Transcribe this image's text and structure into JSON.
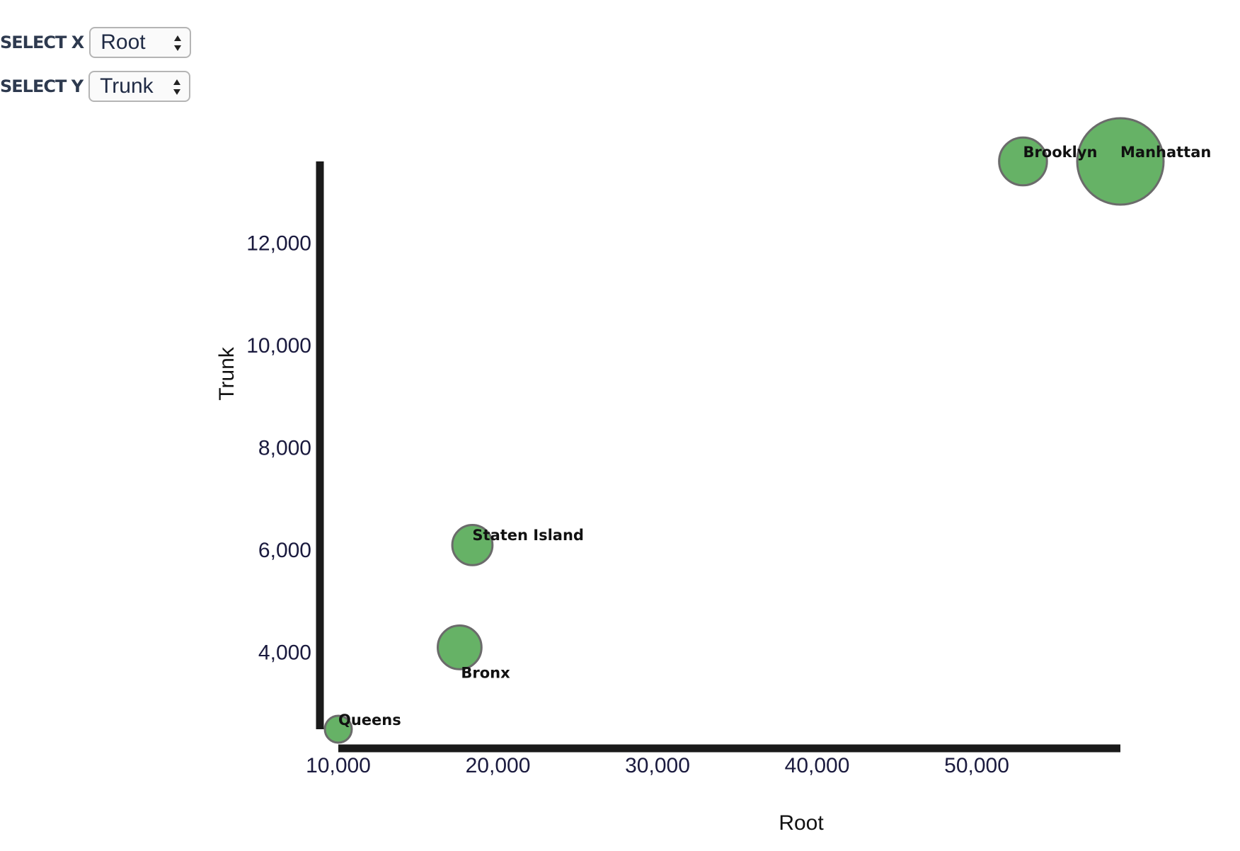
{
  "controls": {
    "x": {
      "label": "SELECT X",
      "value": "Root"
    },
    "y": {
      "label": "SELECT Y",
      "value": "Trunk"
    }
  },
  "colors": {
    "bubble_fill": "#66b266",
    "bubble_stroke": "#6b6b6b",
    "axis": "#1a1a1a"
  },
  "icons": {
    "select_arrows": "updown-chevron-icon"
  },
  "chart_data": {
    "type": "scatter",
    "xlabel": "Root",
    "ylabel": "Trunk",
    "xlim": [
      10000,
      59000
    ],
    "ylim": [
      2500,
      13600
    ],
    "x_ticks": [
      "10,000",
      "20,000",
      "30,000",
      "40,000",
      "50,000"
    ],
    "y_ticks": [
      "4,000",
      "6,000",
      "8,000",
      "10,000",
      "12,000"
    ],
    "grid": false,
    "points": [
      {
        "label": "Queens",
        "x": 10000,
        "y": 2500,
        "size": 1
      },
      {
        "label": "Bronx",
        "x": 17600,
        "y": 4100,
        "size": 2.6
      },
      {
        "label": "Staten Island",
        "x": 18400,
        "y": 6100,
        "size": 2.2
      },
      {
        "label": "Brooklyn",
        "x": 52900,
        "y": 13600,
        "size": 3.1
      },
      {
        "label": "Manhattan",
        "x": 59000,
        "y": 13600,
        "size": 10
      }
    ]
  }
}
